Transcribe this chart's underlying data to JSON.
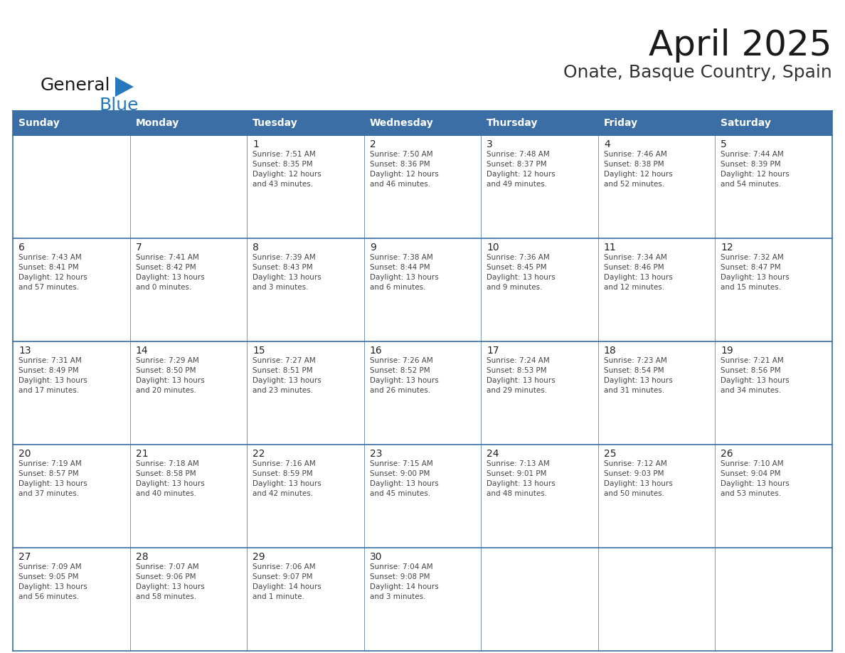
{
  "title": "April 2025",
  "subtitle": "Onate, Basque Country, Spain",
  "days_of_week": [
    "Sunday",
    "Monday",
    "Tuesday",
    "Wednesday",
    "Thursday",
    "Friday",
    "Saturday"
  ],
  "header_bg": "#3A6EA5",
  "header_text": "#FFFFFF",
  "cell_bg": "#FFFFFF",
  "row_line_color": "#3A6EA5",
  "outer_border_color": "#3A6EA5",
  "text_color": "#444444",
  "day_num_color": "#222222",
  "logo_general_color": "#1a1a1a",
  "logo_blue_color": "#2878BE",
  "triangle_color": "#2878BE",
  "weeks": [
    [
      {
        "day": null,
        "info": ""
      },
      {
        "day": null,
        "info": ""
      },
      {
        "day": 1,
        "info": "Sunrise: 7:51 AM\nSunset: 8:35 PM\nDaylight: 12 hours\nand 43 minutes."
      },
      {
        "day": 2,
        "info": "Sunrise: 7:50 AM\nSunset: 8:36 PM\nDaylight: 12 hours\nand 46 minutes."
      },
      {
        "day": 3,
        "info": "Sunrise: 7:48 AM\nSunset: 8:37 PM\nDaylight: 12 hours\nand 49 minutes."
      },
      {
        "day": 4,
        "info": "Sunrise: 7:46 AM\nSunset: 8:38 PM\nDaylight: 12 hours\nand 52 minutes."
      },
      {
        "day": 5,
        "info": "Sunrise: 7:44 AM\nSunset: 8:39 PM\nDaylight: 12 hours\nand 54 minutes."
      }
    ],
    [
      {
        "day": 6,
        "info": "Sunrise: 7:43 AM\nSunset: 8:41 PM\nDaylight: 12 hours\nand 57 minutes."
      },
      {
        "day": 7,
        "info": "Sunrise: 7:41 AM\nSunset: 8:42 PM\nDaylight: 13 hours\nand 0 minutes."
      },
      {
        "day": 8,
        "info": "Sunrise: 7:39 AM\nSunset: 8:43 PM\nDaylight: 13 hours\nand 3 minutes."
      },
      {
        "day": 9,
        "info": "Sunrise: 7:38 AM\nSunset: 8:44 PM\nDaylight: 13 hours\nand 6 minutes."
      },
      {
        "day": 10,
        "info": "Sunrise: 7:36 AM\nSunset: 8:45 PM\nDaylight: 13 hours\nand 9 minutes."
      },
      {
        "day": 11,
        "info": "Sunrise: 7:34 AM\nSunset: 8:46 PM\nDaylight: 13 hours\nand 12 minutes."
      },
      {
        "day": 12,
        "info": "Sunrise: 7:32 AM\nSunset: 8:47 PM\nDaylight: 13 hours\nand 15 minutes."
      }
    ],
    [
      {
        "day": 13,
        "info": "Sunrise: 7:31 AM\nSunset: 8:49 PM\nDaylight: 13 hours\nand 17 minutes."
      },
      {
        "day": 14,
        "info": "Sunrise: 7:29 AM\nSunset: 8:50 PM\nDaylight: 13 hours\nand 20 minutes."
      },
      {
        "day": 15,
        "info": "Sunrise: 7:27 AM\nSunset: 8:51 PM\nDaylight: 13 hours\nand 23 minutes."
      },
      {
        "day": 16,
        "info": "Sunrise: 7:26 AM\nSunset: 8:52 PM\nDaylight: 13 hours\nand 26 minutes."
      },
      {
        "day": 17,
        "info": "Sunrise: 7:24 AM\nSunset: 8:53 PM\nDaylight: 13 hours\nand 29 minutes."
      },
      {
        "day": 18,
        "info": "Sunrise: 7:23 AM\nSunset: 8:54 PM\nDaylight: 13 hours\nand 31 minutes."
      },
      {
        "day": 19,
        "info": "Sunrise: 7:21 AM\nSunset: 8:56 PM\nDaylight: 13 hours\nand 34 minutes."
      }
    ],
    [
      {
        "day": 20,
        "info": "Sunrise: 7:19 AM\nSunset: 8:57 PM\nDaylight: 13 hours\nand 37 minutes."
      },
      {
        "day": 21,
        "info": "Sunrise: 7:18 AM\nSunset: 8:58 PM\nDaylight: 13 hours\nand 40 minutes."
      },
      {
        "day": 22,
        "info": "Sunrise: 7:16 AM\nSunset: 8:59 PM\nDaylight: 13 hours\nand 42 minutes."
      },
      {
        "day": 23,
        "info": "Sunrise: 7:15 AM\nSunset: 9:00 PM\nDaylight: 13 hours\nand 45 minutes."
      },
      {
        "day": 24,
        "info": "Sunrise: 7:13 AM\nSunset: 9:01 PM\nDaylight: 13 hours\nand 48 minutes."
      },
      {
        "day": 25,
        "info": "Sunrise: 7:12 AM\nSunset: 9:03 PM\nDaylight: 13 hours\nand 50 minutes."
      },
      {
        "day": 26,
        "info": "Sunrise: 7:10 AM\nSunset: 9:04 PM\nDaylight: 13 hours\nand 53 minutes."
      }
    ],
    [
      {
        "day": 27,
        "info": "Sunrise: 7:09 AM\nSunset: 9:05 PM\nDaylight: 13 hours\nand 56 minutes."
      },
      {
        "day": 28,
        "info": "Sunrise: 7:07 AM\nSunset: 9:06 PM\nDaylight: 13 hours\nand 58 minutes."
      },
      {
        "day": 29,
        "info": "Sunrise: 7:06 AM\nSunset: 9:07 PM\nDaylight: 14 hours\nand 1 minute."
      },
      {
        "day": 30,
        "info": "Sunrise: 7:04 AM\nSunset: 9:08 PM\nDaylight: 14 hours\nand 3 minutes."
      },
      {
        "day": null,
        "info": ""
      },
      {
        "day": null,
        "info": ""
      },
      {
        "day": null,
        "info": ""
      }
    ]
  ]
}
